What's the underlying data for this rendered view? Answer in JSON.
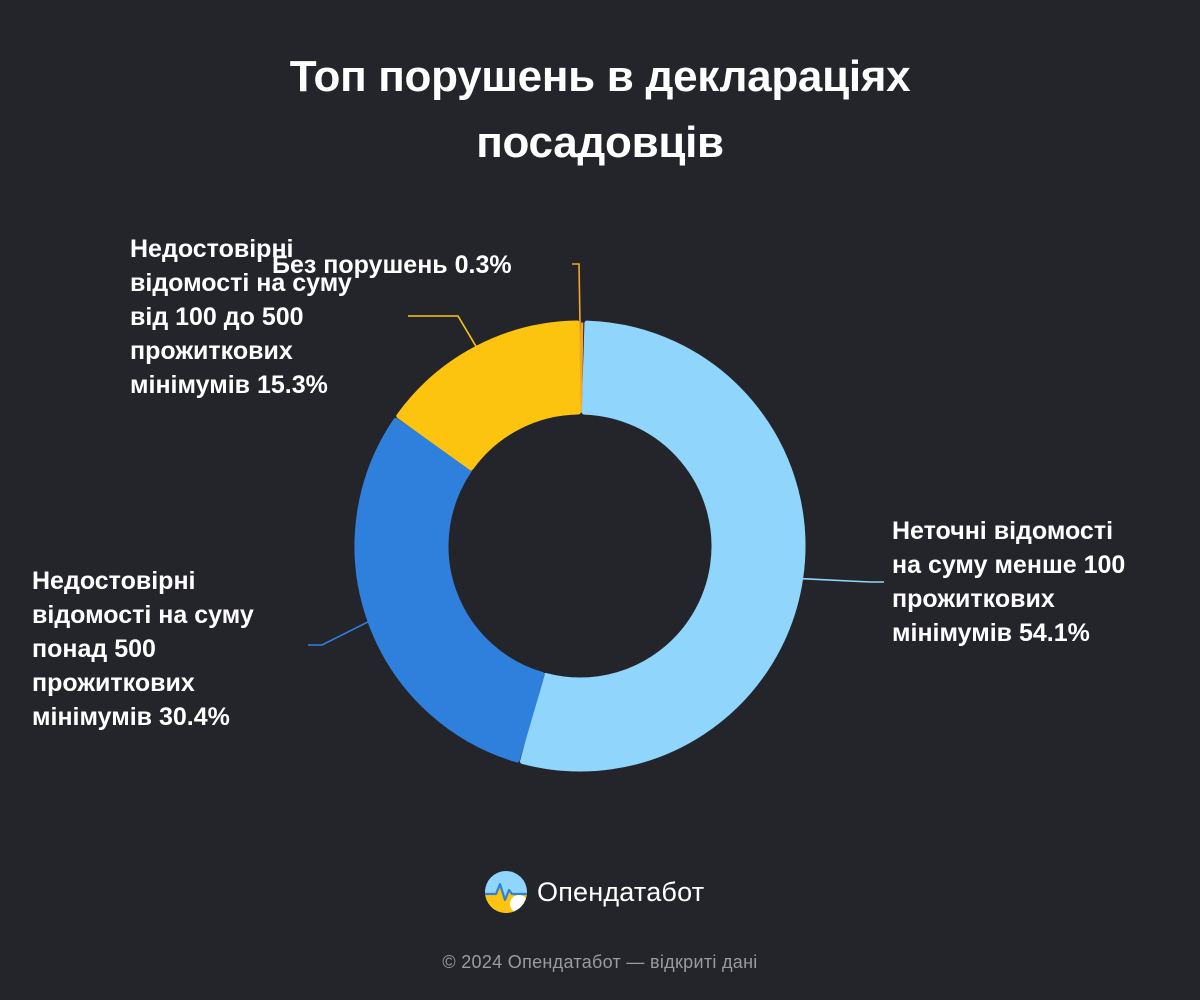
{
  "title_lines": [
    "Топ порушень в деклараціях",
    "посадовців"
  ],
  "chart_data": {
    "type": "pie",
    "title": "Топ порушень в деклараціях посадовців",
    "donut": true,
    "unit": "%",
    "categories": [
      "Без порушень",
      "Неточні відомості на суму менше 100 прожиткових мінімумів",
      "Недостовірні відомості на суму понад 500 прожиткових мінімумів",
      "Недостовірні відомості на суму від 100 до 500 прожиткових мінімумів"
    ],
    "values": [
      0.3,
      54.1,
      30.4,
      15.3
    ],
    "colors": [
      "#f5a623",
      "#90d5fc",
      "#2f80dd",
      "#fcc40f"
    ],
    "labels": [
      {
        "lines": [
          "Без порушень 0.3%"
        ]
      },
      {
        "lines": [
          "Неточні відомості",
          "на суму менше 100",
          "прожиткових",
          "мінімумів 54.1%"
        ]
      },
      {
        "lines": [
          "Недостовірні",
          "відомості на суму",
          "понад 500",
          "прожиткових",
          "мінімумів 30.4%"
        ]
      },
      {
        "lines": [
          "Недостовірні",
          "відомості на суму",
          "від 100 до 500",
          "прожиткових",
          "мінімумів 15.3%"
        ]
      }
    ]
  },
  "brand": {
    "name": "Опендатабот",
    "logo_icon": "opendatabot-logo-icon"
  },
  "footer": "© 2024 Опендатабот — відкриті дані"
}
